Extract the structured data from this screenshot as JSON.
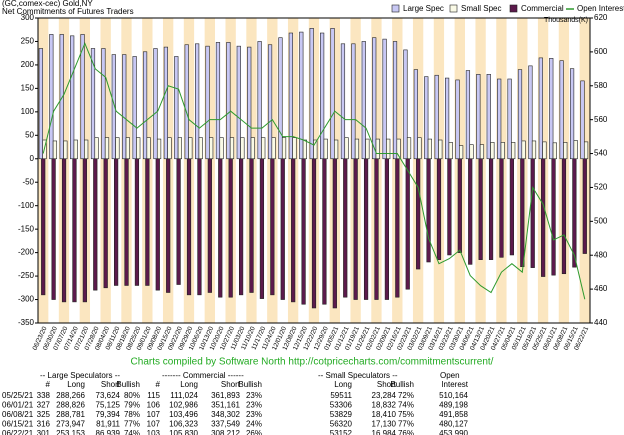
{
  "chart_data": {
    "type": "bar",
    "title": "(GC,comex-cec) Gold,NY",
    "subtitle": "Net Commitments of Futures Traders",
    "y2_label": "Thousands(K)",
    "footer": "Charts compiled by Software North   http://cotpricecharts.com/commitmentscurrent/",
    "categories": [
      "06/23/20",
      "06/30/20",
      "07/07/20",
      "07/14/20",
      "07/21/20",
      "07/28/20",
      "08/04/20",
      "08/11/20",
      "08/18/20",
      "08/25/20",
      "09/01/20",
      "09/08/20",
      "09/15/20",
      "09/22/20",
      "09/29/20",
      "10/06/20",
      "10/13/20",
      "10/20/20",
      "10/27/20",
      "11/03/20",
      "11/10/20",
      "11/17/20",
      "11/24/20",
      "12/01/20",
      "12/08/20",
      "12/15/20",
      "12/22/20",
      "12/29/20",
      "01/05/21",
      "01/12/21",
      "01/19/21",
      "01/26/21",
      "02/02/21",
      "02/09/21",
      "02/16/21",
      "02/23/21",
      "03/02/21",
      "03/09/21",
      "03/16/21",
      "03/23/21",
      "03/30/21",
      "04/06/21",
      "04/13/21",
      "04/20/21",
      "04/27/21",
      "05/04/21",
      "05/11/21",
      "05/18/21",
      "05/25/21",
      "06/01/21",
      "06/08/21",
      "06/15/21",
      "06/22/21"
    ],
    "series": [
      {
        "name": "Large Spec",
        "color": "#c8c8f4",
        "values": [
          235,
          265,
          265,
          262,
          265,
          235,
          235,
          222,
          222,
          218,
          228,
          235,
          238,
          218,
          243,
          245,
          240,
          248,
          248,
          240,
          238,
          250,
          243,
          258,
          268,
          270,
          278,
          268,
          278,
          245,
          245,
          250,
          258,
          255,
          250,
          232,
          190,
          175,
          178,
          172,
          168,
          188,
          180,
          180,
          170,
          170,
          190,
          198,
          215,
          214,
          209,
          192,
          166
        ]
      },
      {
        "name": "Small Spec",
        "color": "#fafae6",
        "values": [
          40,
          38,
          38,
          40,
          40,
          45,
          45,
          45,
          45,
          45,
          45,
          42,
          45,
          45,
          45,
          45,
          45,
          45,
          45,
          45,
          45,
          45,
          45,
          45,
          45,
          40,
          40,
          42,
          40,
          45,
          42,
          42,
          42,
          42,
          42,
          45,
          45,
          42,
          40,
          35,
          28,
          30,
          30,
          35,
          35,
          35,
          38,
          38,
          36,
          34,
          35,
          39,
          36
        ]
      },
      {
        "name": "Commercial",
        "color": "#5c1a4c",
        "values": [
          -290,
          -300,
          -305,
          -305,
          -305,
          -280,
          -275,
          -270,
          -270,
          -270,
          -270,
          -280,
          -285,
          -268,
          -290,
          -290,
          -285,
          -295,
          -295,
          -290,
          -285,
          -298,
          -290,
          -300,
          -305,
          -310,
          -318,
          -310,
          -318,
          -295,
          -300,
          -300,
          -300,
          -300,
          -295,
          -278,
          -235,
          -220,
          -215,
          -205,
          -200,
          -225,
          -215,
          -215,
          -210,
          -205,
          -230,
          -232,
          -251,
          -248,
          -245,
          -231,
          -202
        ]
      },
      {
        "name": "Open Interest",
        "color": "#2e9a2e",
        "type": "line",
        "axis": "y2",
        "values": [
          540,
          565,
          575,
          590,
          605,
          590,
          585,
          565,
          560,
          555,
          560,
          565,
          580,
          578,
          560,
          555,
          560,
          560,
          565,
          560,
          555,
          555,
          560,
          550,
          550,
          548,
          545,
          555,
          565,
          560,
          560,
          555,
          540,
          540,
          540,
          530,
          520,
          490,
          475,
          478,
          483,
          468,
          462,
          458,
          470,
          475,
          470,
          520,
          510,
          489,
          492,
          480,
          454
        ]
      }
    ],
    "ylim": [
      -350,
      300
    ],
    "yticks": [
      -350,
      -300,
      -250,
      -200,
      -150,
      -100,
      -50,
      0,
      50,
      100,
      150,
      200,
      250,
      300
    ],
    "y2lim": [
      440,
      620
    ],
    "y2ticks": [
      440,
      460,
      480,
      500,
      520,
      540,
      560,
      580,
      600,
      620
    ],
    "legend": "top-right"
  },
  "table": {
    "groups": [
      "-- Large Speculators --",
      "------- Commercial ------",
      "-- Small Speculators --",
      "Open"
    ],
    "columns": [
      "#",
      "Long",
      "Short",
      "Bullish",
      "#",
      "Long",
      "Short",
      "Bullish",
      "Long",
      "Short",
      "Bullish",
      "Interest"
    ],
    "rows": [
      [
        "05/25/21",
        "338",
        "288,266",
        "73,624",
        "80%",
        "115",
        "111,024",
        "361,893",
        "23%",
        "59511",
        "23,284",
        "72%",
        "510,164"
      ],
      [
        "06/01/21",
        "327",
        "288,826",
        "75,125",
        "79%",
        "106",
        "102,986",
        "351,161",
        "23%",
        "53306",
        "18,832",
        "74%",
        "489,198"
      ],
      [
        "06/08/21",
        "325",
        "288,781",
        "79,394",
        "78%",
        "107",
        "103,496",
        "348,302",
        "23%",
        "53829",
        "18,410",
        "75%",
        "491,858"
      ],
      [
        "06/15/21",
        "316",
        "273,947",
        "81,911",
        "77%",
        "107",
        "106,323",
        "337,549",
        "24%",
        "56320",
        "17,130",
        "77%",
        "480,127"
      ],
      [
        "06/22/21",
        "301",
        "253,153",
        "86,939",
        "74%",
        "103",
        "105,830",
        "308,212",
        "26%",
        "53152",
        "16,984",
        "76%",
        "453,990"
      ]
    ]
  }
}
